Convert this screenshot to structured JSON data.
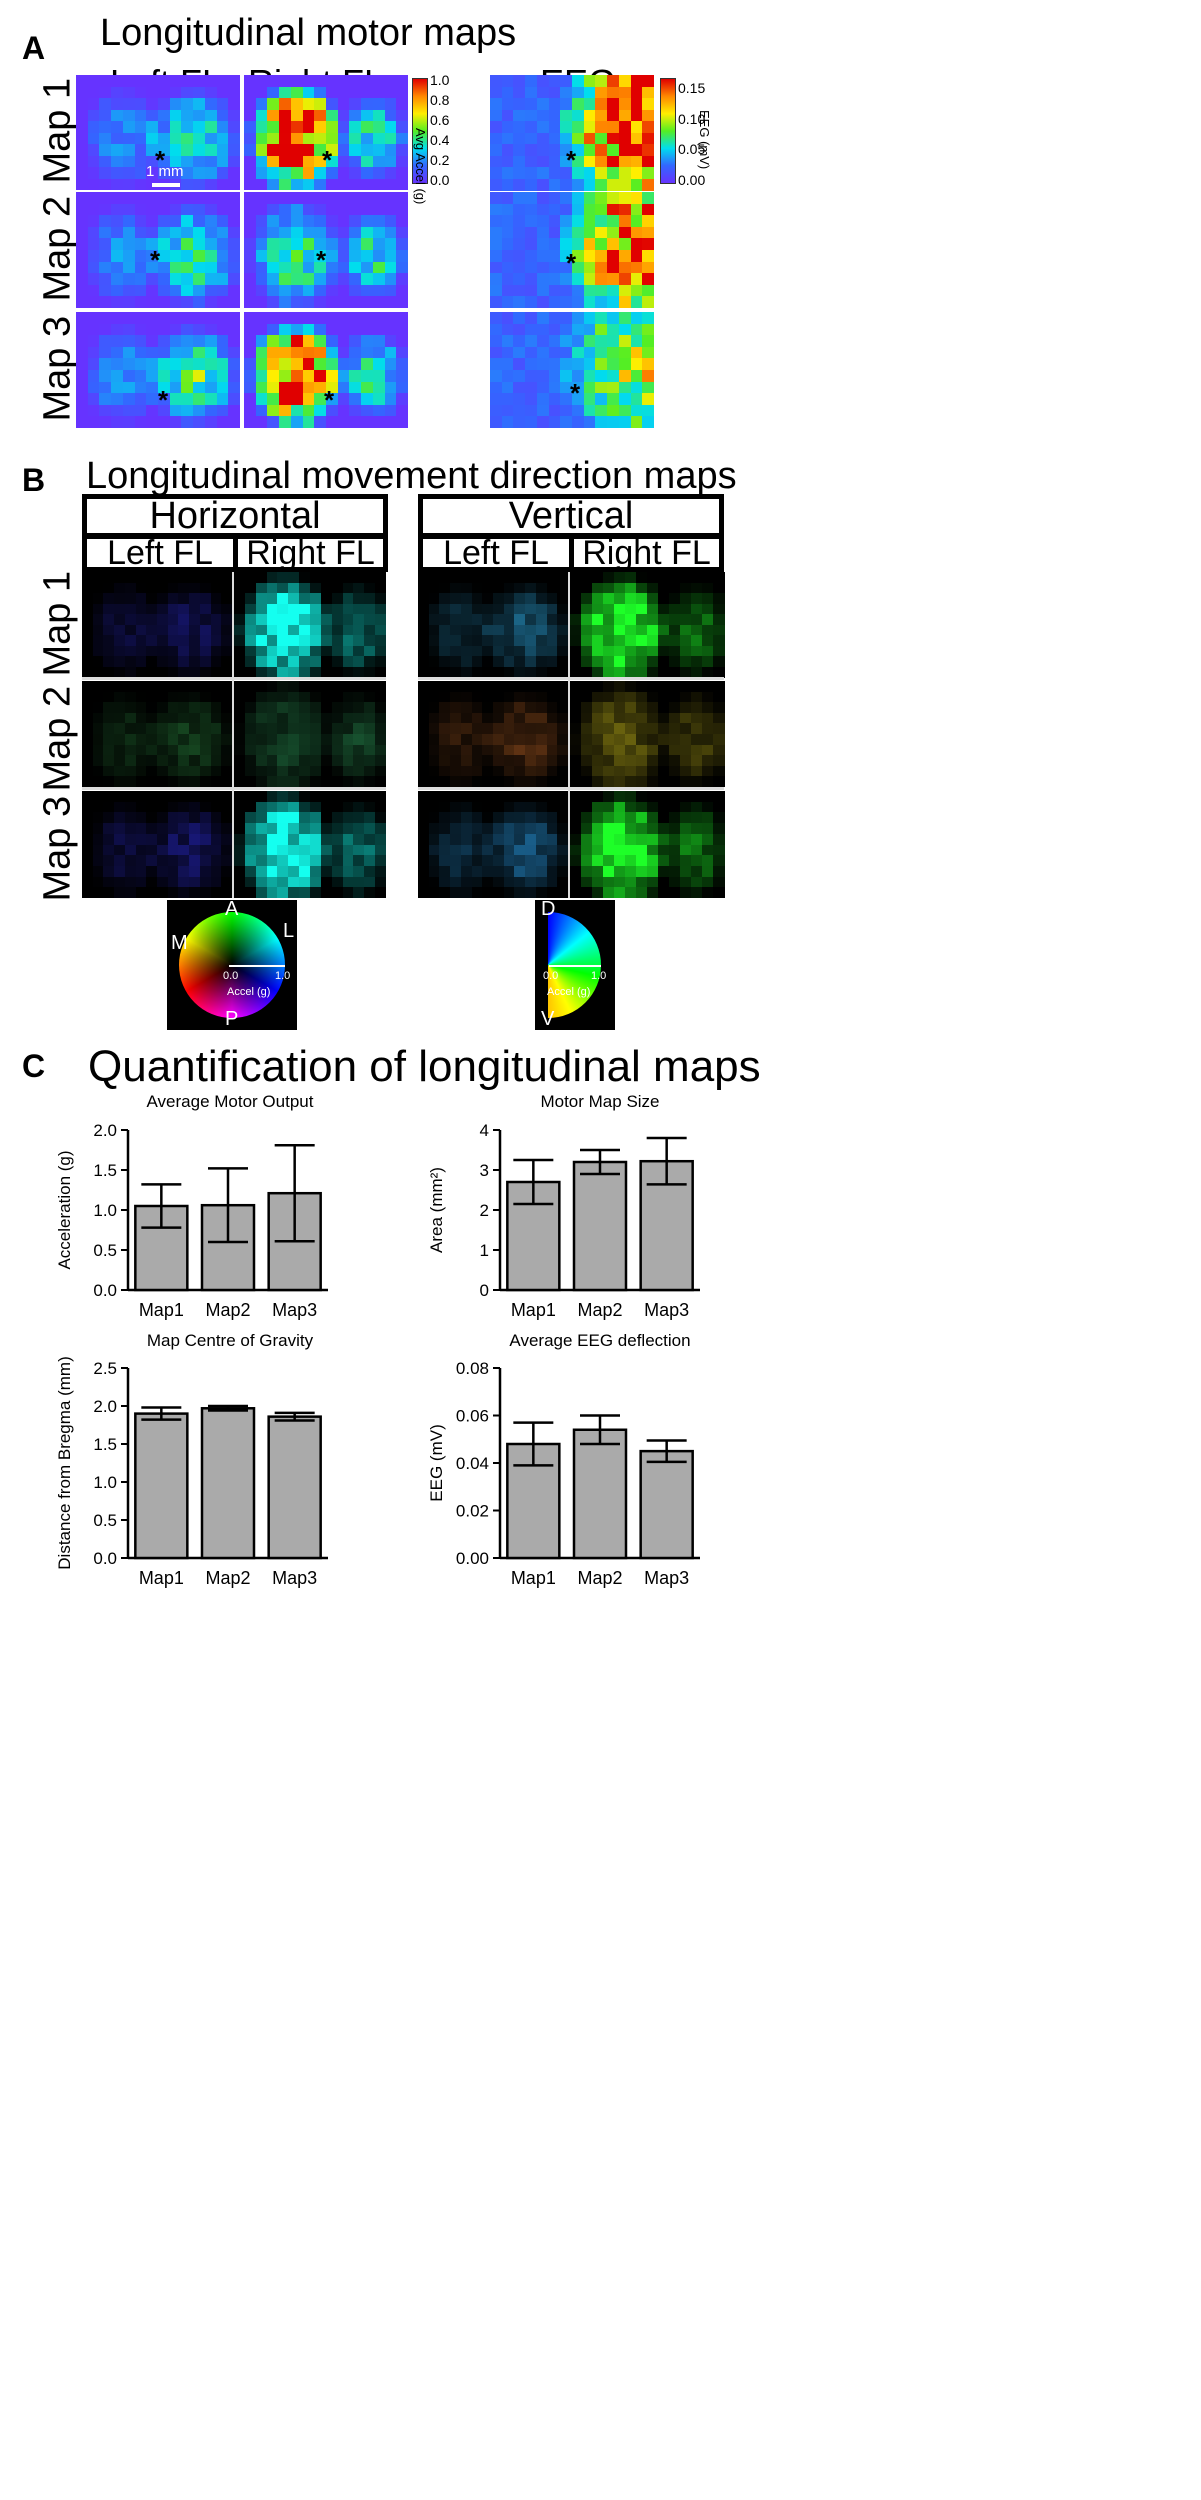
{
  "panelA": {
    "letter": "A",
    "title": "Longitudinal motor maps",
    "left_col": "Left FL",
    "right_col": "Right FL",
    "eeg_title": "EEG",
    "map_labels": [
      "Map 1",
      "Map 2",
      "Map 3"
    ],
    "scale_bar_label": "1 mm",
    "star": "*",
    "accel_colorbar": {
      "label": "Avg Accel (g)",
      "ticks": [
        "1.0",
        "0.8",
        "0.6",
        "0.4",
        "0.2",
        "0.0"
      ]
    },
    "eeg_colorbar": {
      "label": "EEG (mV)",
      "ticks": [
        "0.15",
        "0.10",
        "0.05",
        "0.00"
      ]
    }
  },
  "panelB": {
    "letter": "B",
    "title": "Longitudinal movement direction maps",
    "horizontal": "Horizontal",
    "vertical": "Vertical",
    "left_col": "Left FL",
    "right_col": "Right FL",
    "map_labels": [
      "Map 1",
      "Map 2",
      "Map 3"
    ],
    "wheel_h": {
      "top": "A",
      "left": "M",
      "right": "L",
      "bottom": "P",
      "min": "0.0",
      "max": "1.0",
      "label": "Accel (g)"
    },
    "wheel_v": {
      "top": "D",
      "bottom": "V",
      "min": "0.0",
      "max": "1.0",
      "label": "Accel (g)"
    }
  },
  "panelC": {
    "letter": "C",
    "title": "Quantification of longitudinal maps"
  },
  "chart_data": [
    {
      "type": "bar",
      "title": "Average Motor Output",
      "ylabel": "Acceleration (g)",
      "categories": [
        "Map1",
        "Map2",
        "Map3"
      ],
      "values": [
        1.05,
        1.06,
        1.21
      ],
      "errors": [
        0.27,
        0.46,
        0.6
      ],
      "ylim": [
        0,
        2.0
      ],
      "yticks": [
        "0.0",
        "0.5",
        "1.0",
        "1.5",
        "2.0"
      ]
    },
    {
      "type": "bar",
      "title": "Motor Map Size",
      "ylabel": "Area (mm²)",
      "categories": [
        "Map1",
        "Map2",
        "Map3"
      ],
      "values": [
        2.7,
        3.2,
        3.22
      ],
      "errors": [
        0.55,
        0.3,
        0.58
      ],
      "ylim": [
        0,
        4
      ],
      "yticks": [
        "0",
        "1",
        "2",
        "3",
        "4"
      ]
    },
    {
      "type": "bar",
      "title": "Map Centre of Gravity",
      "ylabel": "Distance from Bregma (mm)",
      "categories": [
        "Map1",
        "Map2",
        "Map3"
      ],
      "values": [
        1.9,
        1.97,
        1.86
      ],
      "errors": [
        0.08,
        0.03,
        0.05
      ],
      "ylim": [
        0,
        2.5
      ],
      "yticks": [
        "0.0",
        "0.5",
        "1.0",
        "1.5",
        "2.0",
        "2.5"
      ]
    },
    {
      "type": "bar",
      "title": "Average EEG deflection",
      "ylabel": "EEG (mV)",
      "categories": [
        "Map1",
        "Map2",
        "Map3"
      ],
      "values": [
        0.048,
        0.054,
        0.045
      ],
      "errors": [
        0.009,
        0.006,
        0.0045
      ],
      "ylim": [
        0,
        0.08
      ],
      "yticks": [
        "0.00",
        "0.02",
        "0.04",
        "0.06",
        "0.08"
      ]
    }
  ]
}
